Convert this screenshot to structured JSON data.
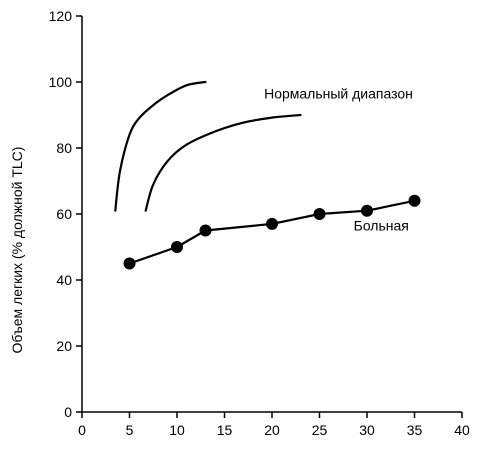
{
  "chart_data": {
    "type": "line",
    "title": "",
    "xlabel": "",
    "ylabel": "Объем легких (% должной TLC)",
    "xlim": [
      0,
      40
    ],
    "ylim": [
      0,
      120
    ],
    "xticks": [
      0,
      5,
      10,
      15,
      20,
      25,
      30,
      35,
      40
    ],
    "yticks": [
      0,
      20,
      40,
      60,
      80,
      100,
      120
    ],
    "grid": false,
    "series": [
      {
        "name": "Больная",
        "markers": true,
        "color": "#000000",
        "x": [
          5,
          10,
          13,
          20,
          25,
          30,
          35
        ],
        "y": [
          45,
          50,
          55,
          57,
          60,
          61,
          64
        ]
      },
      {
        "name": "",
        "markers": false,
        "color": "#000000",
        "x": [
          3.5,
          4,
          5,
          6,
          7.5,
          9,
          11,
          13
        ],
        "y": [
          61,
          73,
          84,
          89,
          93,
          96,
          99,
          100
        ]
      },
      {
        "name": "",
        "markers": false,
        "color": "#000000",
        "x": [
          6.7,
          7.5,
          9,
          11,
          14,
          17,
          20,
          23
        ],
        "y": [
          61,
          69,
          76,
          81,
          85,
          87.7,
          89.2,
          90
        ]
      }
    ],
    "annotations": [
      {
        "text": "Нормальный диапазон",
        "x": 27,
        "y": 95
      },
      {
        "text": "Больная",
        "x": 31.5,
        "y": 55
      }
    ]
  }
}
